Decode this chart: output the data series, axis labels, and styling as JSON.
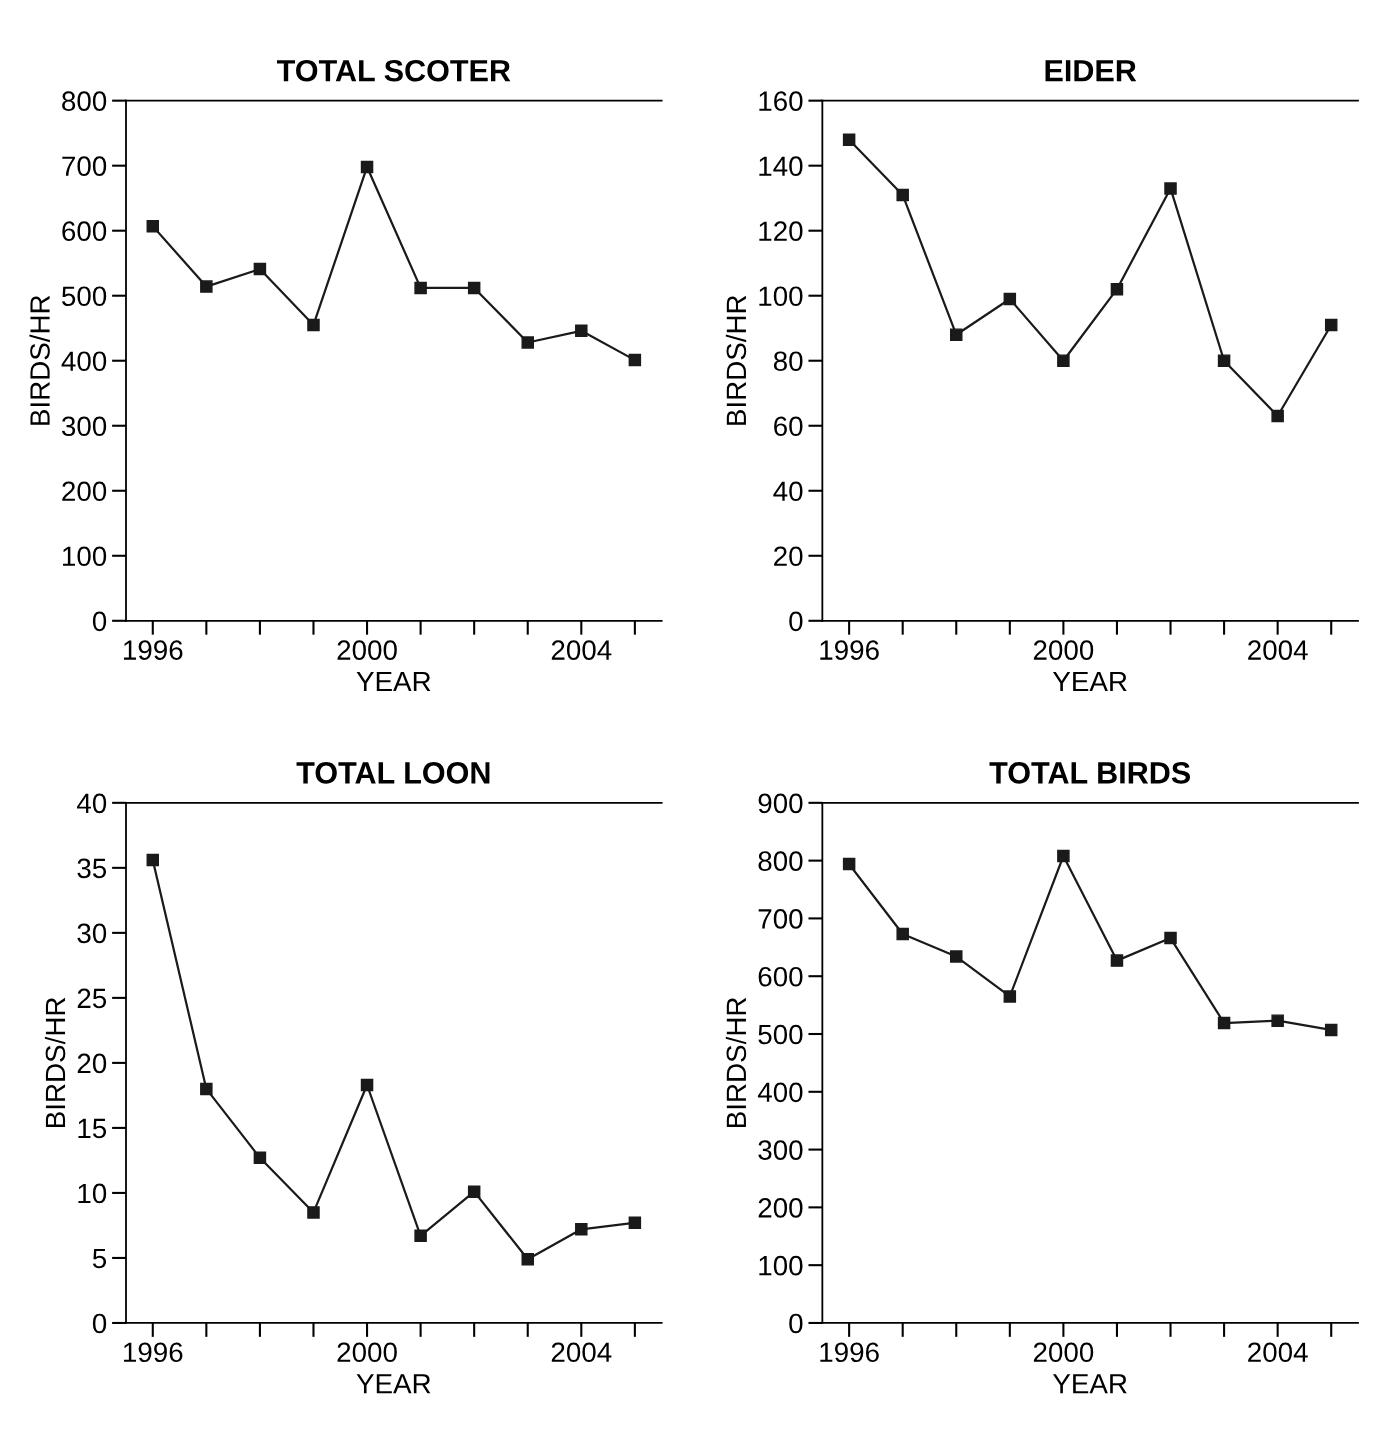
{
  "chart_data": [
    {
      "type": "line",
      "title": "TOTAL SCOTER",
      "xlabel": "YEAR",
      "ylabel": "BIRDS/HR",
      "x": [
        1996,
        1997,
        1998,
        1999,
        2000,
        2001,
        2002,
        2003,
        2004,
        2005
      ],
      "series": [
        {
          "color": "#1a1a1a",
          "values": [
            607,
            514,
            541,
            455,
            698,
            512,
            512,
            428,
            446,
            401
          ]
        }
      ],
      "xlim": [
        1995.5,
        2005.5
      ],
      "xticks": [
        1996,
        {
          "value": 1997,
          "label": null
        },
        {
          "value": 1998,
          "label": null
        },
        {
          "value": 1999,
          "label": null
        },
        2000,
        {
          "value": 2001,
          "label": null
        },
        {
          "value": 2002,
          "label": null
        },
        {
          "value": 2003,
          "label": null
        },
        2004,
        {
          "value": 2005,
          "label": null
        }
      ],
      "ylim": [
        0,
        800
      ],
      "yticks": [
        0,
        100,
        200,
        300,
        400,
        500,
        600,
        700,
        800
      ],
      "marker": "square",
      "line_style": "solid",
      "grid": false
    },
    {
      "type": "line",
      "title": "EIDER",
      "xlabel": "YEAR",
      "ylabel": "BIRDS/HR",
      "x": [
        1996,
        1997,
        1998,
        1999,
        2000,
        2001,
        2002,
        2003,
        2004,
        2005
      ],
      "series": [
        {
          "color": "#1a1a1a",
          "values": [
            148,
            131,
            88,
            99,
            80,
            102,
            133,
            80,
            63,
            91
          ]
        }
      ],
      "xlim": [
        1995.5,
        2005.5
      ],
      "xticks": [
        1996,
        {
          "value": 1997,
          "label": null
        },
        {
          "value": 1998,
          "label": null
        },
        {
          "value": 1999,
          "label": null
        },
        2000,
        {
          "value": 2001,
          "label": null
        },
        {
          "value": 2002,
          "label": null
        },
        {
          "value": 2003,
          "label": null
        },
        2004,
        {
          "value": 2005,
          "label": null
        }
      ],
      "ylim": [
        0,
        160
      ],
      "yticks": [
        0,
        20,
        40,
        60,
        80,
        100,
        120,
        140,
        160
      ],
      "marker": "square",
      "line_style": "solid",
      "grid": false
    },
    {
      "type": "line",
      "title": "TOTAL LOON",
      "xlabel": "YEAR",
      "ylabel": "BIRDS/HR",
      "x": [
        1996,
        1997,
        1998,
        1999,
        2000,
        2001,
        2002,
        2003,
        2004,
        2005
      ],
      "series": [
        {
          "color": "#1a1a1a",
          "values": [
            35.6,
            18,
            12.7,
            8.5,
            18.3,
            6.7,
            10.1,
            4.9,
            7.2,
            7.7
          ]
        }
      ],
      "xlim": [
        1995.5,
        2005.5
      ],
      "xticks": [
        1996,
        {
          "value": 1997,
          "label": null
        },
        {
          "value": 1998,
          "label": null
        },
        {
          "value": 1999,
          "label": null
        },
        2000,
        {
          "value": 2001,
          "label": null
        },
        {
          "value": 2002,
          "label": null
        },
        {
          "value": 2003,
          "label": null
        },
        2004,
        {
          "value": 2005,
          "label": null
        }
      ],
      "ylim": [
        0,
        40
      ],
      "yticks": [
        0,
        5,
        10,
        15,
        20,
        25,
        30,
        35,
        40
      ],
      "marker": "square",
      "line_style": "solid",
      "grid": false
    },
    {
      "type": "line",
      "title": "TOTAL BIRDS",
      "xlabel": "YEAR",
      "ylabel": "BIRDS/HR",
      "x": [
        1996,
        1997,
        1998,
        1999,
        2000,
        2001,
        2002,
        2003,
        2004,
        2005
      ],
      "series": [
        {
          "color": "#1a1a1a",
          "values": [
            794,
            673,
            634,
            565,
            808,
            627,
            666,
            519,
            523,
            507
          ]
        }
      ],
      "xlim": [
        1995.5,
        2005.5
      ],
      "xticks": [
        1996,
        {
          "value": 1997,
          "label": null
        },
        {
          "value": 1998,
          "label": null
        },
        {
          "value": 1999,
          "label": null
        },
        2000,
        {
          "value": 2001,
          "label": null
        },
        {
          "value": 2002,
          "label": null
        },
        {
          "value": 2003,
          "label": null
        },
        2004,
        {
          "value": 2005,
          "label": null
        }
      ],
      "ylim": [
        0,
        900
      ],
      "yticks": [
        0,
        100,
        200,
        300,
        400,
        500,
        600,
        700,
        800,
        900
      ],
      "marker": "square",
      "line_style": "solid",
      "grid": false
    }
  ]
}
